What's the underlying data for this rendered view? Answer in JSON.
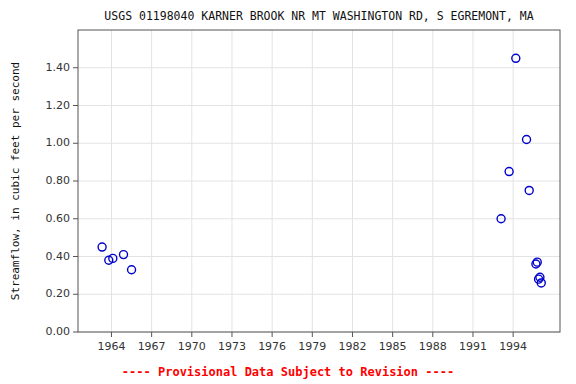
{
  "chart_data": {
    "type": "scatter",
    "title": "USGS 01198040 KARNER BROOK NR MT WASHINGTON RD, S EGREMONT, MA",
    "y_label": "Streamflow, in cubic feet per second",
    "annotations": [
      {
        "text": "---- Provisional Data Subject to Revision ----",
        "color": "#FF0000"
      }
    ],
    "x": [
      1963.3,
      1963.8,
      1964.1,
      1964.9,
      1965.5,
      1993.1,
      1993.7,
      1994.2,
      1995.0,
      1995.2,
      1995.7,
      1995.8,
      1995.9,
      1996.0,
      1996.1
    ],
    "values": [
      0.45,
      0.38,
      0.39,
      0.41,
      0.33,
      0.6,
      0.85,
      1.45,
      1.02,
      0.75,
      0.36,
      0.37,
      0.28,
      0.29,
      0.26
    ],
    "color": "#0000CC",
    "marker": "circle",
    "xlim": [
      1961.5,
      1997.5
    ],
    "ylim": [
      0.0,
      1.6
    ],
    "xticks": [
      1964,
      1967,
      1970,
      1973,
      1976,
      1979,
      1982,
      1985,
      1988,
      1991,
      1994
    ],
    "yticks": [
      {
        "value": 0.0,
        "label": "0.00"
      },
      {
        "value": 0.2,
        "label": "0.20"
      },
      {
        "value": 0.4,
        "label": "0.40"
      },
      {
        "value": 0.6,
        "label": "0.60"
      },
      {
        "value": 0.8,
        "label": "0.80"
      },
      {
        "value": 1.0,
        "label": "1.00"
      },
      {
        "value": 1.2,
        "label": "1.20"
      },
      {
        "value": 1.4,
        "label": "1.40"
      }
    ],
    "grid": true
  }
}
